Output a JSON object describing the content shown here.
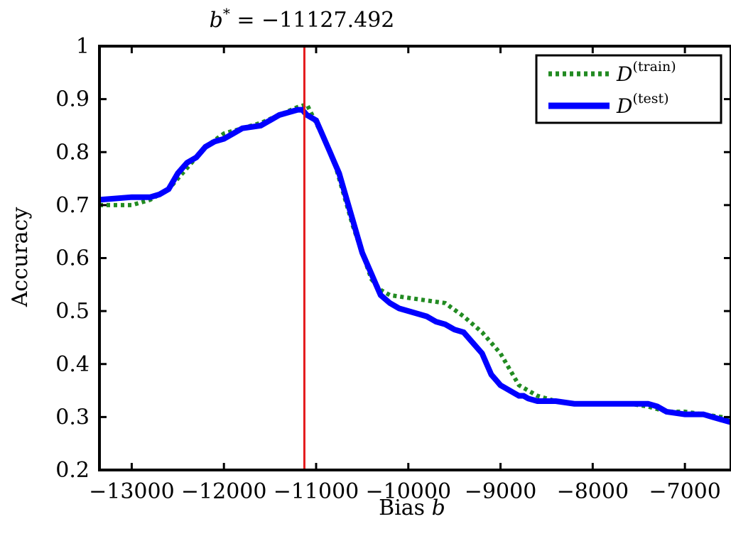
{
  "chart_data": {
    "type": "line",
    "title": "b* = −11127.492",
    "xlabel": "Bias b",
    "ylabel": "Accuracy",
    "xlim": [
      -13350,
      -6500
    ],
    "ylim": [
      0.2,
      1.0
    ],
    "xticks": [
      -13000,
      -12000,
      -11000,
      -10000,
      -9000,
      -8000,
      -7000
    ],
    "xtick_labels": [
      "−13000",
      "−12000",
      "−11000",
      "−10000",
      "−9000",
      "−8000",
      "−7000"
    ],
    "yticks": [
      0.2,
      0.3,
      0.4,
      0.5,
      0.6,
      0.7,
      0.8,
      0.9,
      1.0
    ],
    "ytick_labels": [
      "0.2",
      "0.3",
      "0.4",
      "0.5",
      "0.6",
      "0.7",
      "0.8",
      "0.9",
      "1"
    ],
    "grid": false,
    "legend_position": "top-right",
    "vline": {
      "x": -11127.492,
      "color": "#e41a1c"
    },
    "series": [
      {
        "name": "D(train)",
        "style": "dotted",
        "color": "#228b22",
        "x": [
          -13350,
          -13000,
          -12800,
          -12600,
          -12400,
          -12200,
          -12000,
          -11800,
          -11600,
          -11400,
          -11200,
          -11100,
          -11000,
          -10900,
          -10800,
          -10700,
          -10600,
          -10500,
          -10400,
          -10300,
          -10200,
          -10000,
          -9800,
          -9600,
          -9400,
          -9200,
          -9000,
          -8800,
          -8600,
          -8400,
          -8200,
          -8000,
          -7800,
          -7600,
          -7400,
          -7200,
          -7000,
          -6800,
          -6600,
          -6500
        ],
        "y": [
          0.7,
          0.7,
          0.71,
          0.73,
          0.77,
          0.81,
          0.835,
          0.845,
          0.855,
          0.87,
          0.885,
          0.89,
          0.855,
          0.82,
          0.78,
          0.72,
          0.66,
          0.61,
          0.56,
          0.54,
          0.53,
          0.525,
          0.52,
          0.515,
          0.49,
          0.46,
          0.42,
          0.36,
          0.34,
          0.33,
          0.325,
          0.325,
          0.325,
          0.325,
          0.32,
          0.31,
          0.31,
          0.305,
          0.3,
          0.295
        ]
      },
      {
        "name": "D(test)",
        "style": "solid",
        "color": "#0000ff",
        "x": [
          -13350,
          -13000,
          -12800,
          -12700,
          -12600,
          -12500,
          -12400,
          -12300,
          -12200,
          -12100,
          -12000,
          -11900,
          -11800,
          -11600,
          -11500,
          -11400,
          -11300,
          -11200,
          -11150,
          -11100,
          -11000,
          -10950,
          -10900,
          -10850,
          -10800,
          -10750,
          -10700,
          -10650,
          -10600,
          -10550,
          -10500,
          -10450,
          -10400,
          -10350,
          -10300,
          -10200,
          -10100,
          -10000,
          -9800,
          -9700,
          -9600,
          -9500,
          -9400,
          -9300,
          -9200,
          -9150,
          -9100,
          -9050,
          -9000,
          -8950,
          -8900,
          -8850,
          -8800,
          -8750,
          -8700,
          -8600,
          -8400,
          -8200,
          -8000,
          -7800,
          -7600,
          -7400,
          -7300,
          -7200,
          -7000,
          -6800,
          -6700,
          -6600,
          -6500
        ],
        "y": [
          0.71,
          0.715,
          0.715,
          0.72,
          0.73,
          0.76,
          0.78,
          0.79,
          0.81,
          0.82,
          0.825,
          0.835,
          0.845,
          0.85,
          0.86,
          0.87,
          0.875,
          0.88,
          0.88,
          0.87,
          0.86,
          0.84,
          0.82,
          0.8,
          0.78,
          0.76,
          0.73,
          0.7,
          0.67,
          0.64,
          0.61,
          0.59,
          0.57,
          0.55,
          0.53,
          0.515,
          0.505,
          0.5,
          0.49,
          0.48,
          0.475,
          0.465,
          0.46,
          0.44,
          0.42,
          0.4,
          0.38,
          0.37,
          0.36,
          0.355,
          0.35,
          0.345,
          0.34,
          0.34,
          0.335,
          0.33,
          0.33,
          0.325,
          0.325,
          0.325,
          0.325,
          0.325,
          0.32,
          0.31,
          0.305,
          0.305,
          0.3,
          0.295,
          0.29
        ]
      }
    ]
  }
}
